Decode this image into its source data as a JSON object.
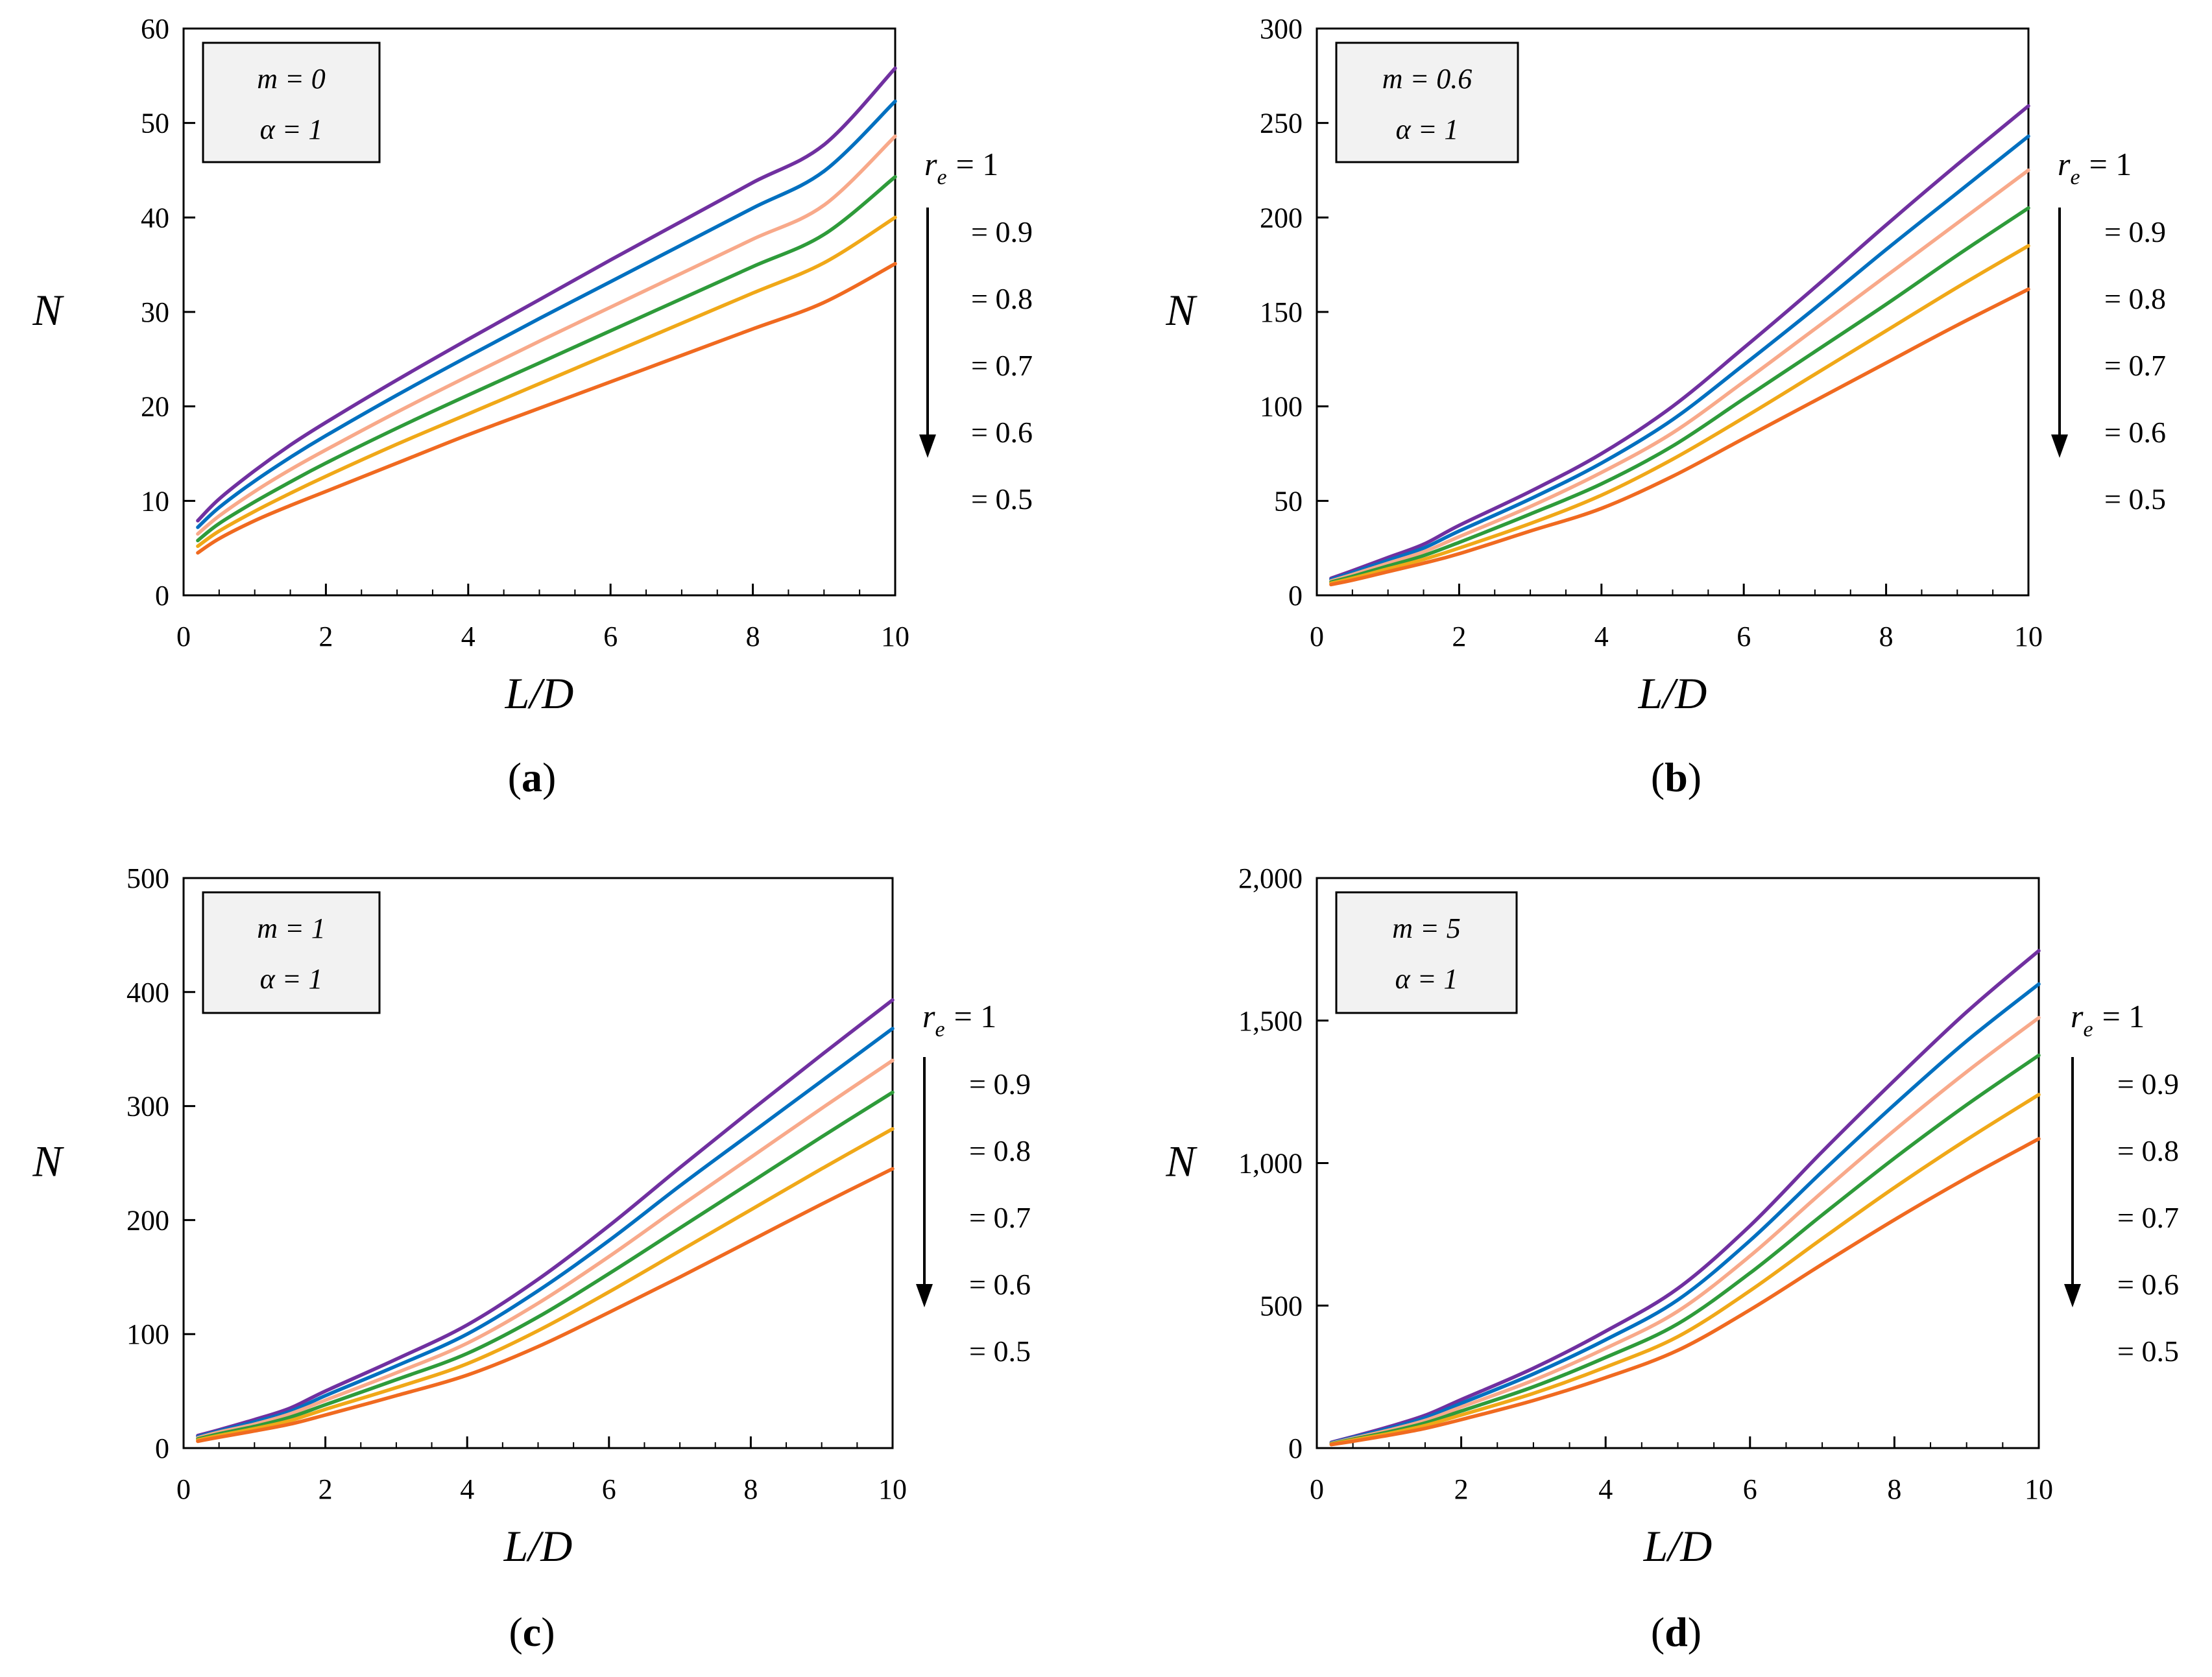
{
  "figure": {
    "panel_labels": [
      "(a)",
      "(b)",
      "(c)",
      "(d)"
    ],
    "series_colors": [
      "#7030A0",
      "#0070C0",
      "#F8A98A",
      "#2E9B3A",
      "#F0A818",
      "#F06A20"
    ],
    "legend": {
      "head_symbol": "r",
      "head_subscript": "e",
      "head_value": "= 1",
      "values": [
        "= 0.9",
        "= 0.8",
        "= 0.7",
        "= 0.6",
        "= 0.5"
      ]
    }
  },
  "chart_data": [
    {
      "type": "line",
      "panel": "(a)",
      "xlabel": "L/D",
      "ylabel": "N",
      "xlim": [
        0,
        10
      ],
      "ylim": [
        0,
        60
      ],
      "x_ticks": [
        "0",
        "2",
        "4",
        "6",
        "8",
        "10"
      ],
      "y_ticks": [
        "0",
        "10",
        "20",
        "30",
        "40",
        "50",
        "60"
      ],
      "annotation": [
        "m = 0",
        "α = 1"
      ],
      "x": [
        0.2,
        0.5,
        1,
        1.5,
        2,
        3,
        4,
        5,
        6,
        7,
        8,
        9,
        10
      ],
      "series": [
        {
          "name": "r_e = 1",
          "values": [
            7.9,
            10.2,
            13.2,
            15.9,
            18.3,
            22.8,
            27.1,
            31.3,
            35.5,
            39.6,
            43.7,
            47.7,
            55.8
          ]
        },
        {
          "name": "r_e = 0.9",
          "values": [
            7.2,
            9.3,
            12.1,
            14.6,
            16.9,
            21.2,
            25.3,
            29.3,
            33.2,
            37.1,
            41.0,
            44.9,
            52.3
          ]
        },
        {
          "name": "r_e = 0.8",
          "values": [
            6.5,
            8.4,
            11.0,
            13.3,
            15.4,
            19.4,
            23.2,
            26.9,
            30.5,
            34.1,
            37.7,
            41.3,
            48.6
          ]
        },
        {
          "name": "r_e = 0.7",
          "values": [
            5.8,
            7.6,
            9.9,
            12.0,
            14.0,
            17.7,
            21.2,
            24.6,
            28.0,
            31.4,
            34.8,
            38.2,
            44.3
          ]
        },
        {
          "name": "r_e = 0.6",
          "values": [
            5.2,
            6.8,
            8.9,
            10.8,
            12.6,
            16.0,
            19.2,
            22.4,
            25.6,
            28.8,
            32.0,
            35.2,
            40.0
          ]
        },
        {
          "name": "r_e = 0.5",
          "values": [
            4.5,
            6.0,
            7.9,
            9.5,
            11.0,
            14.0,
            17.0,
            19.8,
            22.6,
            25.4,
            28.2,
            31.0,
            35.1
          ]
        }
      ]
    },
    {
      "type": "line",
      "panel": "(b)",
      "xlabel": "L/D",
      "ylabel": "N",
      "xlim": [
        0,
        10
      ],
      "ylim": [
        0,
        300
      ],
      "x_ticks": [
        "0",
        "2",
        "4",
        "6",
        "8",
        "10"
      ],
      "y_ticks": [
        "0",
        "50",
        "100",
        "150",
        "200",
        "250",
        "300"
      ],
      "annotation": [
        "m = 0.6",
        "α = 1"
      ],
      "x": [
        0.2,
        0.5,
        1,
        1.5,
        2,
        3,
        4,
        5,
        6,
        7,
        8,
        9,
        10
      ],
      "series": [
        {
          "name": "r_e = 1",
          "values": [
            9,
            13,
            20,
            27,
            37,
            55,
            75,
            100,
            131,
            163,
            196,
            228,
            259
          ]
        },
        {
          "name": "r_e = 0.9",
          "values": [
            8.3,
            12,
            18.5,
            25,
            34,
            51,
            70,
            93,
            122,
            152,
            183,
            213,
            243
          ]
        },
        {
          "name": "r_e = 0.8",
          "values": [
            7.6,
            11,
            17,
            23,
            31,
            47,
            65,
            86,
            113,
            141,
            169,
            197,
            225
          ]
        },
        {
          "name": "r_e = 0.7",
          "values": [
            7,
            10,
            15.5,
            21,
            28,
            43,
            59,
            79,
            104,
            129,
            154,
            180,
            205
          ]
        },
        {
          "name": "r_e = 0.6",
          "values": [
            6.4,
            9,
            14,
            19,
            25,
            38,
            53,
            72,
            94,
            117,
            140,
            163,
            185
          ]
        },
        {
          "name": "r_e = 0.5",
          "values": [
            5.7,
            8,
            12.5,
            17,
            22,
            34,
            46,
            63,
            83,
            103,
            123,
            143,
            162
          ]
        }
      ]
    },
    {
      "type": "line",
      "panel": "(c)",
      "xlabel": "L/D",
      "ylabel": "N",
      "xlim": [
        0,
        10
      ],
      "ylim": [
        0,
        500
      ],
      "x_ticks": [
        "0",
        "2",
        "4",
        "6",
        "8",
        "10"
      ],
      "y_ticks": [
        "0",
        "100",
        "200",
        "300",
        "400",
        "500"
      ],
      "annotation": [
        "m = 1",
        "α = 1"
      ],
      "x": [
        0.2,
        0.5,
        1,
        1.5,
        2,
        3,
        4,
        5,
        6,
        7,
        8,
        9,
        10
      ],
      "series": [
        {
          "name": "r_e = 1",
          "values": [
            11,
            16,
            25,
            35,
            50,
            78,
            108,
            148,
            195,
            246,
            296,
            345,
            393
          ]
        },
        {
          "name": "r_e = 0.9",
          "values": [
            10,
            15,
            23,
            32,
            46,
            72,
            100,
            138,
            182,
            230,
            276,
            322,
            368
          ]
        },
        {
          "name": "r_e = 0.8",
          "values": [
            9,
            14,
            21,
            30,
            42,
            66,
            92,
            127,
            168,
            212,
            255,
            298,
            340
          ]
        },
        {
          "name": "r_e = 0.7",
          "values": [
            8,
            12.5,
            19,
            27,
            38,
            60,
            83,
            115,
            153,
            193,
            233,
            273,
            312
          ]
        },
        {
          "name": "r_e = 0.6",
          "values": [
            7,
            11,
            17,
            24,
            34,
            53,
            74,
            103,
            137,
            173,
            209,
            245,
            280
          ]
        },
        {
          "name": "r_e = 0.5",
          "values": [
            6,
            9.5,
            15,
            21,
            29,
            46,
            64,
            89,
            119,
            150,
            182,
            214,
            245
          ]
        }
      ]
    },
    {
      "type": "line",
      "panel": "(d)",
      "xlabel": "L/D",
      "ylabel": "N",
      "xlim": [
        0,
        10
      ],
      "ylim": [
        0,
        2000
      ],
      "x_ticks": [
        "0",
        "2",
        "4",
        "6",
        "8",
        "10"
      ],
      "y_ticks": [
        "0",
        "500",
        "1,000",
        "1,500",
        "2,000"
      ],
      "annotation": [
        "m = 5",
        "α = 1"
      ],
      "x": [
        0.2,
        0.5,
        1,
        1.5,
        2,
        3,
        4,
        5,
        6,
        7,
        8,
        9,
        10
      ],
      "series": [
        {
          "name": "r_e = 1",
          "values": [
            20,
            40,
            75,
            115,
            170,
            280,
            410,
            560,
            780,
            1040,
            1290,
            1530,
            1745
          ]
        },
        {
          "name": "r_e = 0.9",
          "values": [
            18,
            37,
            69,
            106,
            157,
            260,
            380,
            520,
            728,
            970,
            1205,
            1428,
            1628
          ]
        },
        {
          "name": "r_e = 0.8",
          "values": [
            16.5,
            34,
            63,
            97,
            144,
            238,
            350,
            480,
            674,
            898,
            1115,
            1320,
            1510
          ]
        },
        {
          "name": "r_e = 0.7",
          "values": [
            15,
            31,
            57,
            88,
            130,
            215,
            318,
            436,
            614,
            818,
            1017,
            1204,
            1378
          ]
        },
        {
          "name": "r_e = 0.6",
          "values": [
            13.5,
            28,
            51,
            79,
            116,
            192,
            284,
            391,
            552,
            735,
            914,
            1082,
            1240
          ]
        },
        {
          "name": "r_e = 0.5",
          "values": [
            12,
            24,
            45,
            69,
            100,
            167,
            247,
            343,
            485,
            645,
            801,
            948,
            1085
          ]
        }
      ]
    }
  ]
}
